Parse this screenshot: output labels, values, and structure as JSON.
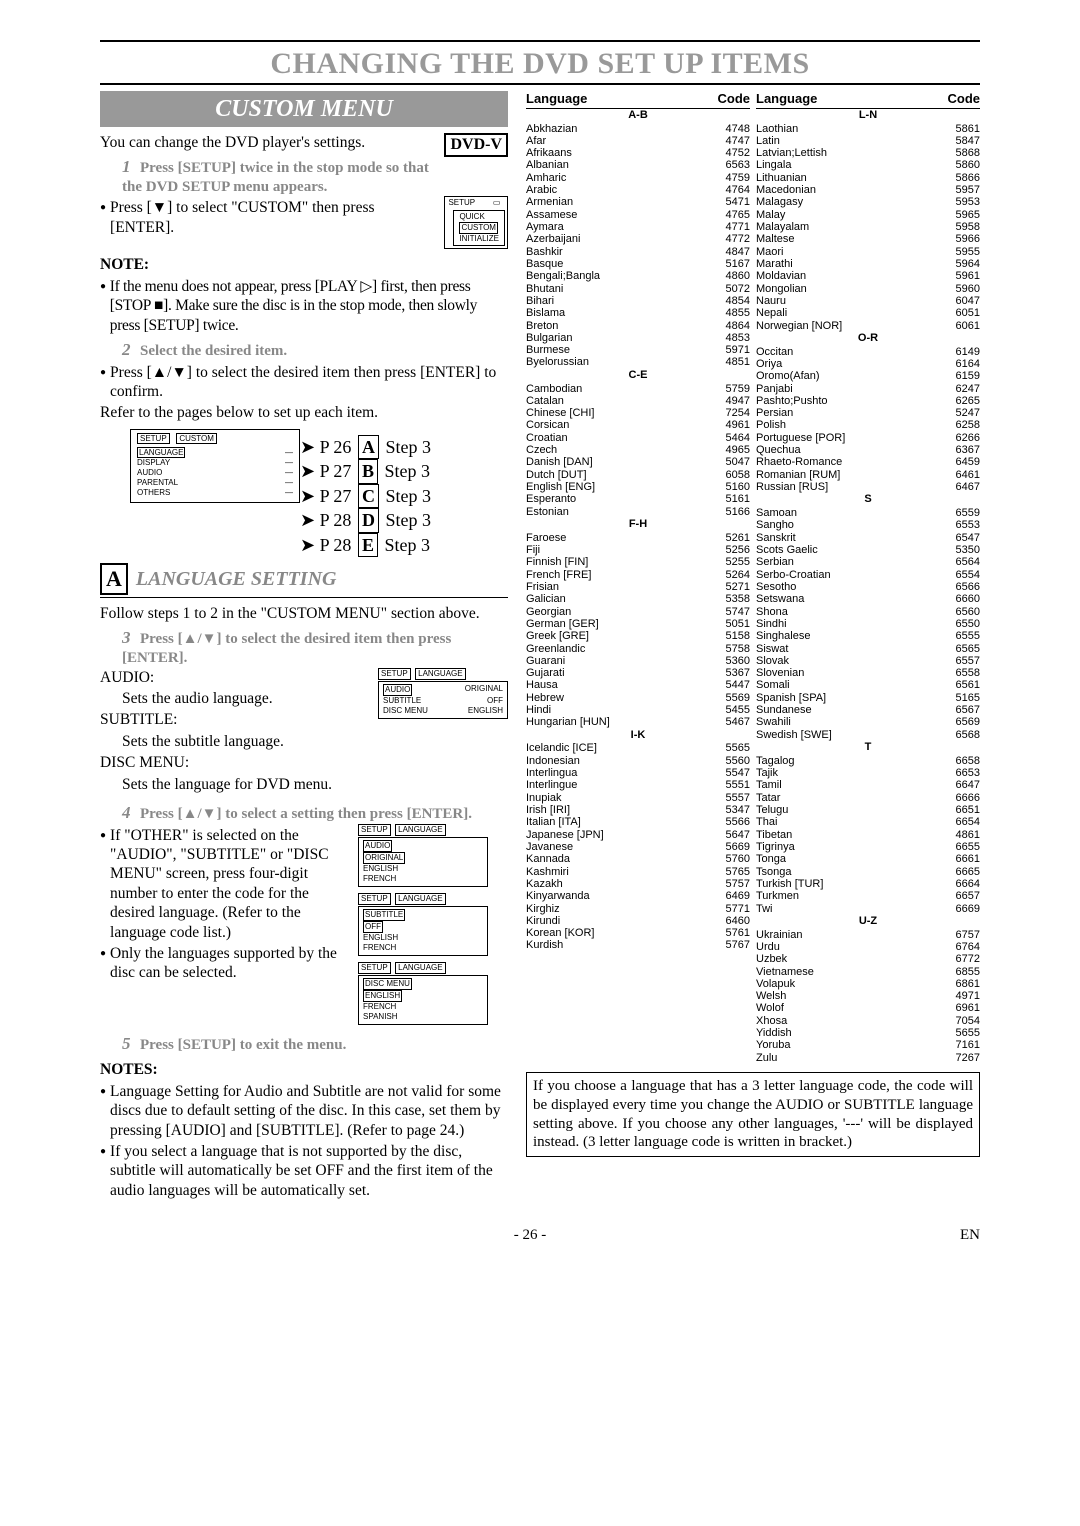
{
  "page_title": "CHANGING THE DVD SET UP ITEMS",
  "custom_menu_title": "CUSTOM MENU",
  "dvdv": "DVD-V",
  "intro": "You can change the DVD player's settings.",
  "step1": "Press [SETUP] twice in the stop mode so that the DVD SETUP menu appears.",
  "press_down": "Press [▼] to select \"CUSTOM\" then press [ENTER].",
  "note_hdr": "NOTE:",
  "note1": "If the menu does not appear, press [PLAY ▷] first, then press [STOP ■]. Make sure the disc is in the stop mode, then slowly press [SETUP] twice.",
  "step2": "Select the desired item.",
  "press_updown": "Press [▲/▼] to select the desired item then press [ENTER] to confirm.",
  "refer": "Refer to the pages below to set up each item.",
  "setup_menu": {
    "title": "SETUP",
    "items": [
      "QUICK",
      "CUSTOM",
      "INITIALIZE"
    ],
    "selected": 1
  },
  "custom_diagram": {
    "tab1": "SETUP",
    "tab2": "CUSTOM",
    "items": [
      "LANGUAGE",
      "DISPLAY",
      "AUDIO",
      "PARENTAL",
      "OTHERS"
    ]
  },
  "plinks": [
    {
      "p": "P 26",
      "box": "A",
      "step": "Step 3"
    },
    {
      "p": "P 27",
      "box": "B",
      "step": "Step 3"
    },
    {
      "p": "P 27",
      "box": "C",
      "step": "Step 3"
    },
    {
      "p": "P 28",
      "box": "D",
      "step": "Step 3"
    },
    {
      "p": "P 28",
      "box": "E",
      "step": "Step 3"
    }
  ],
  "sectA_box": "A",
  "sectA_title": "LANGUAGE SETTING",
  "follow": "Follow steps 1 to 2 in the \"CUSTOM MENU\" section above.",
  "step3": "Press [▲/▼] to select the desired item then press [ENTER].",
  "audio_lbl": "AUDIO:",
  "audio_txt": "Sets the audio language.",
  "subtitle_lbl": "SUBTITLE:",
  "subtitle_txt": "Sets the subtitle language.",
  "discmenu_lbl": "DISC MENU:",
  "discmenu_txt": "Sets the language for DVD menu.",
  "lang_menu1": {
    "tab1": "SETUP",
    "tab2": "LANGUAGE",
    "rows": [
      [
        "AUDIO",
        "ORIGINAL"
      ],
      [
        "SUBTITLE",
        "OFF"
      ],
      [
        "DISC MENU",
        "ENGLISH"
      ]
    ],
    "sel": 0
  },
  "step4": "Press [▲/▼] to select a setting then press [ENTER].",
  "other1": "If \"OTHER\" is selected on the \"AUDIO\", \"SUBTITLE\" or \"DISC MENU\" screen, press four-digit number to enter the code for the desired language. (Refer to the language code list.)",
  "other2": "Only the languages supported by the disc can be selected.",
  "lang_menu2": {
    "tab1": "SETUP",
    "tab2": "LANGUAGE",
    "hdr": "AUDIO",
    "opts": [
      "ORIGINAL",
      "ENGLISH",
      "FRENCH"
    ],
    "sel": 0
  },
  "lang_menu3": {
    "tab1": "SETUP",
    "tab2": "LANGUAGE",
    "hdr": "SUBTITLE",
    "opts": [
      "OFF",
      "ENGLISH",
      "FRENCH"
    ],
    "sel": 0
  },
  "lang_menu4": {
    "tab1": "SETUP",
    "tab2": "LANGUAGE",
    "hdr": "DISC MENU",
    "opts": [
      "ENGLISH",
      "FRENCH",
      "SPANISH"
    ],
    "sel": 0
  },
  "step5": "Press [SETUP] to exit the menu.",
  "notes_hdr": "NOTES:",
  "notes1": "Language Setting for Audio and Subtitle are not valid for some discs due to default setting of the disc. In this case, set them by pressing [AUDIO] and [SUBTITLE]. (Refer to page 24.)",
  "notes2": "If you select a language that is not supported by the disc, subtitle will automatically be set OFF and the first item of the audio languages will be automatically set.",
  "lang_head_l": "Language",
  "lang_head_c": "Code",
  "col1": [
    {
      "g": "A-B"
    },
    {
      "l": "Abkhazian",
      "c": "4748"
    },
    {
      "l": "Afar",
      "c": "4747"
    },
    {
      "l": "Afrikaans",
      "c": "4752"
    },
    {
      "l": "Albanian",
      "c": "6563"
    },
    {
      "l": "Amharic",
      "c": "4759"
    },
    {
      "l": "Arabic",
      "c": "4764"
    },
    {
      "l": "Armenian",
      "c": "5471"
    },
    {
      "l": "Assamese",
      "c": "4765"
    },
    {
      "l": "Aymara",
      "c": "4771"
    },
    {
      "l": "Azerbaijani",
      "c": "4772"
    },
    {
      "l": "Bashkir",
      "c": "4847"
    },
    {
      "l": "Basque",
      "c": "5167"
    },
    {
      "l": "Bengali;Bangla",
      "c": "4860"
    },
    {
      "l": "Bhutani",
      "c": "5072"
    },
    {
      "l": "Bihari",
      "c": "4854"
    },
    {
      "l": "Bislama",
      "c": "4855"
    },
    {
      "l": "Breton",
      "c": "4864"
    },
    {
      "l": "Bulgarian",
      "c": "4853"
    },
    {
      "l": "Burmese",
      "c": "5971"
    },
    {
      "l": "Byelorussian",
      "c": "4851"
    },
    {
      "g": "C-E"
    },
    {
      "l": "Cambodian",
      "c": "5759"
    },
    {
      "l": "Catalan",
      "c": "4947"
    },
    {
      "l": "Chinese [CHI]",
      "c": "7254"
    },
    {
      "l": "Corsican",
      "c": "4961"
    },
    {
      "l": "Croatian",
      "c": "5464"
    },
    {
      "l": "Czech",
      "c": "4965"
    },
    {
      "l": "Danish [DAN]",
      "c": "5047"
    },
    {
      "l": "Dutch [DUT]",
      "c": "6058"
    },
    {
      "l": "English [ENG]",
      "c": "5160"
    },
    {
      "l": "Esperanto",
      "c": "5161"
    },
    {
      "l": "Estonian",
      "c": "5166"
    },
    {
      "g": "F-H"
    },
    {
      "l": "Faroese",
      "c": "5261"
    },
    {
      "l": "Fiji",
      "c": "5256"
    },
    {
      "l": "Finnish [FIN]",
      "c": "5255"
    },
    {
      "l": "French [FRE]",
      "c": "5264"
    },
    {
      "l": "Frisian",
      "c": "5271"
    },
    {
      "l": "Galician",
      "c": "5358"
    },
    {
      "l": "Georgian",
      "c": "5747"
    },
    {
      "l": "German [GER]",
      "c": "5051"
    },
    {
      "l": "Greek [GRE]",
      "c": "5158"
    },
    {
      "l": "Greenlandic",
      "c": "5758"
    },
    {
      "l": "Guarani",
      "c": "5360"
    },
    {
      "l": "Gujarati",
      "c": "5367"
    },
    {
      "l": "Hausa",
      "c": "5447"
    },
    {
      "l": "Hebrew",
      "c": "5569"
    },
    {
      "l": "Hindi",
      "c": "5455"
    },
    {
      "l": "Hungarian [HUN]",
      "c": "5467"
    },
    {
      "g": "I-K"
    },
    {
      "l": "Icelandic [ICE]",
      "c": "5565"
    },
    {
      "l": "Indonesian",
      "c": "5560"
    },
    {
      "l": "Interlingua",
      "c": "5547"
    },
    {
      "l": "Interlingue",
      "c": "5551"
    },
    {
      "l": "Inupiak",
      "c": "5557"
    },
    {
      "l": "Irish [IRI]",
      "c": "5347"
    },
    {
      "l": "Italian [ITA]",
      "c": "5566"
    },
    {
      "l": "Japanese [JPN]",
      "c": "5647"
    },
    {
      "l": "Javanese",
      "c": "5669"
    },
    {
      "l": "Kannada",
      "c": "5760"
    },
    {
      "l": "Kashmiri",
      "c": "5765"
    },
    {
      "l": "Kazakh",
      "c": "5757"
    },
    {
      "l": "Kinyarwanda",
      "c": "6469"
    },
    {
      "l": "Kirghiz",
      "c": "5771"
    },
    {
      "l": "Kirundi",
      "c": "6460"
    },
    {
      "l": "Korean [KOR]",
      "c": "5761"
    },
    {
      "l": "Kurdish",
      "c": "5767"
    }
  ],
  "col2": [
    {
      "g": "L-N"
    },
    {
      "l": "Laothian",
      "c": "5861"
    },
    {
      "l": "Latin",
      "c": "5847"
    },
    {
      "l": "Latvian;Lettish",
      "c": "5868"
    },
    {
      "l": "Lingala",
      "c": "5860"
    },
    {
      "l": "Lithuanian",
      "c": "5866"
    },
    {
      "l": "Macedonian",
      "c": "5957"
    },
    {
      "l": "Malagasy",
      "c": "5953"
    },
    {
      "l": "Malay",
      "c": "5965"
    },
    {
      "l": "Malayalam",
      "c": "5958"
    },
    {
      "l": "Maltese",
      "c": "5966"
    },
    {
      "l": "Maori",
      "c": "5955"
    },
    {
      "l": "Marathi",
      "c": "5964"
    },
    {
      "l": "Moldavian",
      "c": "5961"
    },
    {
      "l": "Mongolian",
      "c": "5960"
    },
    {
      "l": "Nauru",
      "c": "6047"
    },
    {
      "l": "Nepali",
      "c": "6051"
    },
    {
      "l": "Norwegian [NOR]",
      "c": "6061"
    },
    {
      "g": "O-R"
    },
    {
      "l": "Occitan",
      "c": "6149"
    },
    {
      "l": "Oriya",
      "c": "6164"
    },
    {
      "l": "Oromo(Afan)",
      "c": "6159"
    },
    {
      "l": "Panjabi",
      "c": "6247"
    },
    {
      "l": "Pashto;Pushto",
      "c": "6265"
    },
    {
      "l": "Persian",
      "c": "5247"
    },
    {
      "l": "Polish",
      "c": "6258"
    },
    {
      "l": "Portuguese [POR]",
      "c": "6266"
    },
    {
      "l": "Quechua",
      "c": "6367"
    },
    {
      "l": "Rhaeto-Romance",
      "c": "6459"
    },
    {
      "l": "Romanian [RUM]",
      "c": "6461"
    },
    {
      "l": "Russian [RUS]",
      "c": "6467"
    },
    {
      "g": "S"
    },
    {
      "l": "Samoan",
      "c": "6559"
    },
    {
      "l": "Sangho",
      "c": "6553"
    },
    {
      "l": "Sanskrit",
      "c": "6547"
    },
    {
      "l": "Scots Gaelic",
      "c": "5350"
    },
    {
      "l": "Serbian",
      "c": "6564"
    },
    {
      "l": "Serbo-Croatian",
      "c": "6554"
    },
    {
      "l": "Sesotho",
      "c": "6566"
    },
    {
      "l": "Setswana",
      "c": "6660"
    },
    {
      "l": "Shona",
      "c": "6560"
    },
    {
      "l": "Sindhi",
      "c": "6550"
    },
    {
      "l": "Singhalese",
      "c": "6555"
    },
    {
      "l": "Siswat",
      "c": "6565"
    },
    {
      "l": "Slovak",
      "c": "6557"
    },
    {
      "l": "Slovenian",
      "c": "6558"
    },
    {
      "l": "Somali",
      "c": "6561"
    },
    {
      "l": "Spanish [SPA]",
      "c": "5165"
    },
    {
      "l": "Sundanese",
      "c": "6567"
    },
    {
      "l": "Swahili",
      "c": "6569"
    },
    {
      "l": "Swedish [SWE]",
      "c": "6568"
    },
    {
      "g": "T"
    },
    {
      "l": "Tagalog",
      "c": "6658"
    },
    {
      "l": "Tajik",
      "c": "6653"
    },
    {
      "l": "Tamil",
      "c": "6647"
    },
    {
      "l": "Tatar",
      "c": "6666"
    },
    {
      "l": "Telugu",
      "c": "6651"
    },
    {
      "l": "Thai",
      "c": "6654"
    },
    {
      "l": "Tibetan",
      "c": "4861"
    },
    {
      "l": "Tigrinya",
      "c": "6655"
    },
    {
      "l": "Tonga",
      "c": "6661"
    },
    {
      "l": "Tsonga",
      "c": "6665"
    },
    {
      "l": "Turkish [TUR]",
      "c": "6664"
    },
    {
      "l": "Turkmen",
      "c": "6657"
    },
    {
      "l": "Twi",
      "c": "6669"
    },
    {
      "g": "U-Z"
    },
    {
      "l": "Ukrainian",
      "c": "6757"
    },
    {
      "l": "Urdu",
      "c": "6764"
    },
    {
      "l": "Uzbek",
      "c": "6772"
    },
    {
      "l": "Vietnamese",
      "c": "6855"
    },
    {
      "l": "Volapuk",
      "c": "6861"
    },
    {
      "l": "Welsh",
      "c": "4971"
    },
    {
      "l": "Wolof",
      "c": "6961"
    },
    {
      "l": "Xhosa",
      "c": "7054"
    },
    {
      "l": "Yiddish",
      "c": "5655"
    },
    {
      "l": "Yoruba",
      "c": "7161"
    },
    {
      "l": "Zulu",
      "c": "7267"
    }
  ],
  "rnote": "If you choose a language that has a 3 letter language code, the code will be displayed every time you change the AUDIO or SUBTITLE language setting above. If you choose any other languages, '---' will be displayed instead. (3 letter language code is written in bracket.)",
  "pagenum": "- 26 -",
  "en": "EN"
}
